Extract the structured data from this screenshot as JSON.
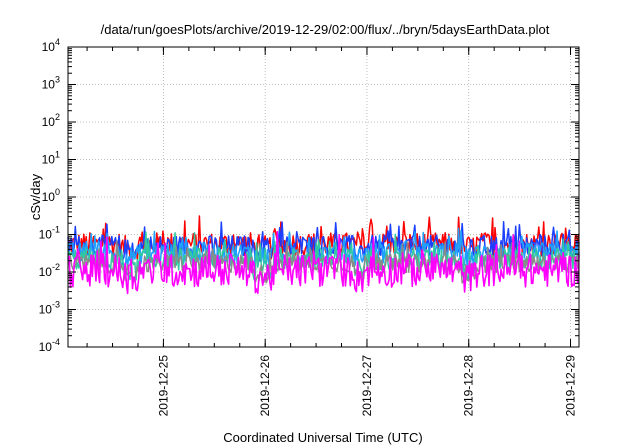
{
  "chart_data": {
    "type": "line",
    "title": "/data/run/goesPlots/archive/2019-12-29/02:00/flux/../bryn/5daysEarthData.plot",
    "xlabel": "Coordinated Universal Time (UTC)",
    "ylabel": "cSv/day",
    "yscale": "log",
    "ylim": [
      0.0001,
      10000
    ],
    "xlim": [
      "2019-12-24T01:30",
      "2019-12-29T02:00"
    ],
    "grid": true,
    "y_ticks": [
      {
        "value": 0.0001,
        "base": "10",
        "exp": "-4"
      },
      {
        "value": 0.001,
        "base": "10",
        "exp": "-3"
      },
      {
        "value": 0.01,
        "base": "10",
        "exp": "-2"
      },
      {
        "value": 0.1,
        "base": "10",
        "exp": "-1"
      },
      {
        "value": 1,
        "base": "10",
        "exp": "0"
      },
      {
        "value": 10,
        "base": "10",
        "exp": "1"
      },
      {
        "value": 100,
        "base": "10",
        "exp": "2"
      },
      {
        "value": 1000,
        "base": "10",
        "exp": "3"
      },
      {
        "value": 10000,
        "base": "10",
        "exp": "4"
      }
    ],
    "x_ticks": [
      "2019-12-25",
      "2019-12-26",
      "2019-12-27",
      "2019-12-28",
      "2019-12-29"
    ],
    "series": [
      {
        "color": "#ff0000",
        "base": 0.055,
        "spread": 0.32,
        "dip": 0.045
      },
      {
        "color": "#1a3fff",
        "base": 0.048,
        "spread": 0.3,
        "dip": 0.038
      },
      {
        "color": "#1fa0ff",
        "base": 0.032,
        "spread": 0.28,
        "dip": 0.026
      },
      {
        "color": "#30c9a0",
        "base": 0.022,
        "spread": 0.3,
        "dip": 0.012
      },
      {
        "color": "#8a8a8a",
        "base": 0.017,
        "spread": 0.25,
        "dip": 0.009
      },
      {
        "color": "#ff00ff",
        "base": 0.011,
        "spread": 0.45,
        "dip": 0.0075
      }
    ]
  }
}
